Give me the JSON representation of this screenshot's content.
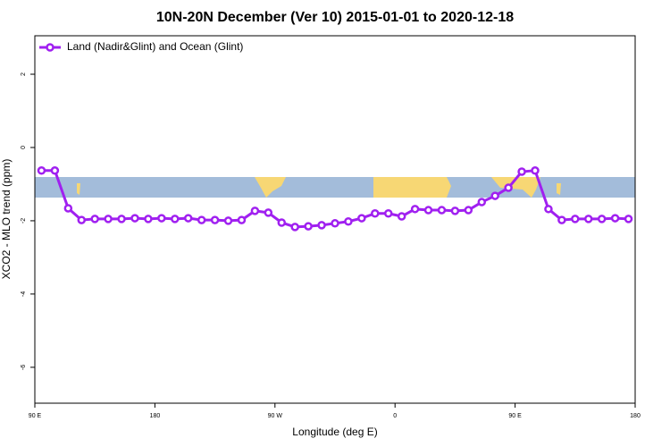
{
  "chart_data": {
    "type": "line",
    "title": "10N-20N December (Ver 10)   2015-01-01 to 2020-12-18",
    "xlabel": "Longitude (deg E)",
    "ylabel": "XCO2 - MLO trend (ppm)",
    "x": [
      95,
      105,
      115,
      125,
      135,
      145,
      155,
      165,
      175,
      185,
      195,
      205,
      215,
      225,
      235,
      245,
      255,
      265,
      275,
      285,
      295,
      305,
      315,
      325,
      335,
      345,
      355,
      365,
      375,
      385,
      395,
      405,
      415,
      425,
      435,
      445,
      455,
      465,
      475,
      485,
      495,
      505,
      515,
      525,
      535
    ],
    "series": [
      {
        "name": "Land (Nadir&Glint) and Ocean (Glint)",
        "color": "#a020f0",
        "values": [
          -0.63,
          -0.63,
          -1.66,
          -1.98,
          -1.95,
          -1.95,
          -1.95,
          -1.93,
          -1.95,
          -1.93,
          -1.95,
          -1.93,
          -1.98,
          -1.98,
          -2.0,
          -1.98,
          -1.73,
          -1.78,
          -2.05,
          -2.17,
          -2.15,
          -2.12,
          -2.07,
          -2.02,
          -1.93,
          -1.8,
          -1.8,
          -1.88,
          -1.68,
          -1.71,
          -1.71,
          -1.73,
          -1.71,
          -1.49,
          -1.32,
          -1.1,
          -0.66,
          -0.63,
          -1.68,
          -1.98,
          -1.95,
          -1.95,
          -1.95,
          -1.93,
          -1.95
        ]
      }
    ],
    "xlim": [
      90,
      540
    ],
    "xticks": [
      {
        "value": 90,
        "label": "90 E"
      },
      180,
      {
        "value": 270,
        "label": "90 W"
      },
      {
        "value": 360,
        "label": "0"
      },
      {
        "value": 450,
        "label": "90 E"
      },
      {
        "value": 540,
        "label": "180"
      }
    ],
    "ylim": [
      -6.98,
      3.05
    ],
    "yticks": [
      -6,
      -4,
      -2,
      0,
      2
    ],
    "legend": "top-left"
  }
}
